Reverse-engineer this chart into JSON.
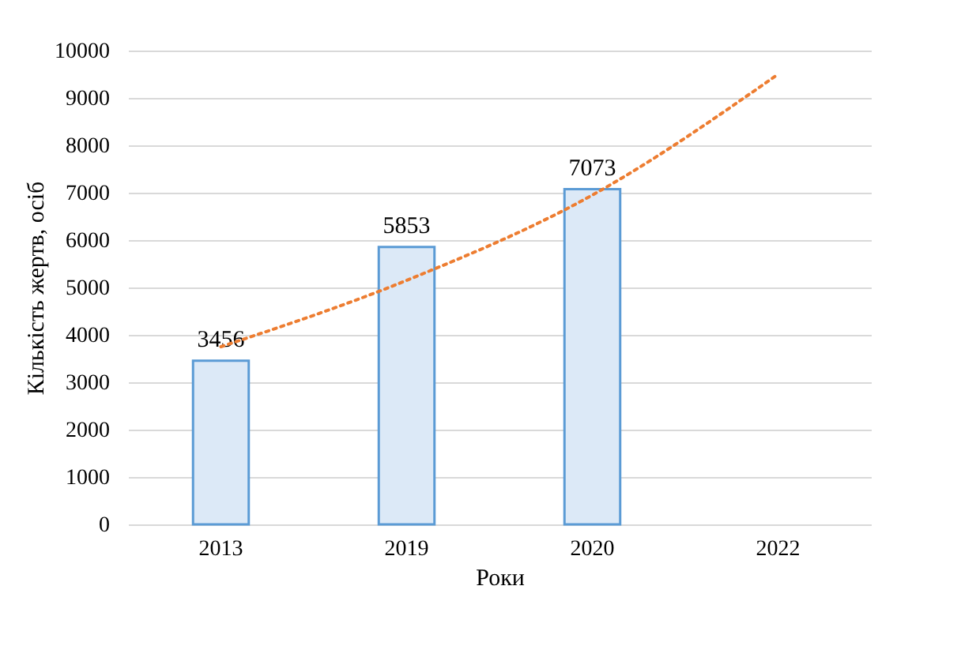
{
  "chart_data": {
    "type": "bar",
    "xlabel": "Роки",
    "ylabel": "Кількість жертв, осіб",
    "categories": [
      "2013",
      "2019",
      "2020",
      "2022"
    ],
    "series": [
      {
        "color": "#5b9bd5",
        "values": [
          3456,
          5853,
          7073,
          null
        ],
        "value_labels": [
          "3456",
          "5853",
          "7073",
          null
        ]
      },
      {
        "type": "line",
        "color": "#ed7d31",
        "line_style": "dotted",
        "values": [
          3750,
          5150,
          6950,
          9500
        ]
      }
    ],
    "ylim": [
      0,
      10000
    ],
    "yticks": [
      0,
      1000,
      2000,
      3000,
      4000,
      5000,
      6000,
      7000,
      8000,
      9000,
      10000
    ],
    "grid": "y"
  }
}
